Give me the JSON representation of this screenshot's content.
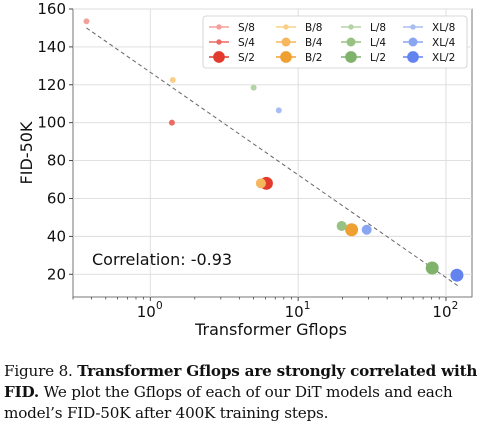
{
  "chart_data": {
    "type": "scatter",
    "title": "",
    "xlabel": "Transformer Gflops",
    "ylabel": "FID-50K",
    "xscale": "log",
    "xlim": [
      0.3,
      150
    ],
    "ylim": [
      8,
      160
    ],
    "x_ticks": [
      {
        "value": 1,
        "base": "10",
        "exp": "0"
      },
      {
        "value": 10,
        "base": "10",
        "exp": "1"
      },
      {
        "value": 100,
        "base": "10",
        "exp": "2"
      }
    ],
    "y_ticks": [
      "20",
      "40",
      "60",
      "80",
      "100",
      "120",
      "140",
      "160"
    ],
    "grid": true,
    "legend_position": "top-right",
    "annotation": "Correlation: -0.93",
    "trendline": {
      "style": "dashed",
      "points": [
        [
          0.37,
          150
        ],
        [
          120,
          14
        ]
      ]
    },
    "series": [
      {
        "name": "S/8",
        "color": "#f4a09a",
        "size": "small",
        "points": [
          [
            0.37,
            153.5
          ]
        ]
      },
      {
        "name": "S/4",
        "color": "#ec6a62",
        "size": "small",
        "points": [
          [
            1.4,
            100
          ]
        ]
      },
      {
        "name": "S/2",
        "color": "#e23b2e",
        "size": "large",
        "points": [
          [
            6.1,
            68
          ]
        ]
      },
      {
        "name": "B/8",
        "color": "#f8d08a",
        "size": "small",
        "points": [
          [
            1.42,
            122.5
          ]
        ]
      },
      {
        "name": "B/4",
        "color": "#f5b65e",
        "size": "medium",
        "points": [
          [
            5.6,
            68
          ]
        ]
      },
      {
        "name": "B/2",
        "color": "#f0a030",
        "size": "large",
        "points": [
          [
            23,
            43.5
          ]
        ]
      },
      {
        "name": "L/8",
        "color": "#b6d3a6",
        "size": "small",
        "points": [
          [
            5.0,
            118.5
          ]
        ]
      },
      {
        "name": "L/4",
        "color": "#98c283",
        "size": "medium",
        "points": [
          [
            19.7,
            45.5
          ]
        ]
      },
      {
        "name": "L/2",
        "color": "#7fb26a",
        "size": "large",
        "points": [
          [
            80.7,
            23.3
          ]
        ]
      },
      {
        "name": "XL/8",
        "color": "#a8bdf4",
        "size": "small",
        "points": [
          [
            7.4,
            106.5
          ]
        ]
      },
      {
        "name": "XL/4",
        "color": "#8aa5f2",
        "size": "medium",
        "points": [
          [
            29.1,
            43.5
          ]
        ]
      },
      {
        "name": "XL/2",
        "color": "#6384ef",
        "size": "large",
        "points": [
          [
            118.6,
            19.5
          ]
        ]
      }
    ]
  },
  "caption": {
    "prefix": "Figure 8. ",
    "bold": "Transformer Gflops are strongly correlated with FID.",
    "rest": " We plot the Gflops of each of our DiT models and each model’s FID-50K after 400K training steps."
  }
}
